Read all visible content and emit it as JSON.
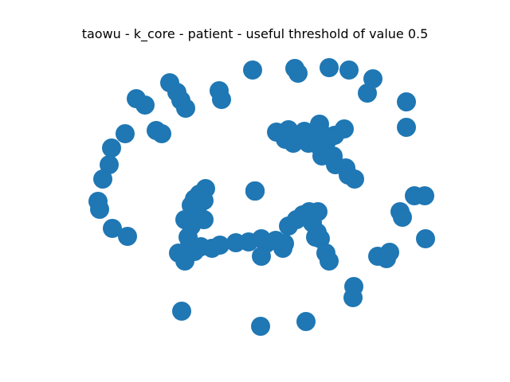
{
  "title": "taowu - k_core - patient - useful threshold of value 0.5",
  "node_color": "#1f77b4",
  "edge_color": "#000000",
  "graph": {
    "type": "network",
    "nodes": [
      {
        "id": 0
      },
      {
        "id": 1
      },
      {
        "id": 2
      },
      {
        "id": 3
      },
      {
        "id": 4
      },
      {
        "id": 5
      },
      {
        "id": 6
      },
      {
        "id": 7
      },
      {
        "id": 8
      },
      {
        "id": 9
      },
      {
        "id": 10
      },
      {
        "id": 11
      },
      {
        "id": 12
      },
      {
        "id": 13
      },
      {
        "id": 14
      },
      {
        "id": 15
      },
      {
        "id": 16
      },
      {
        "id": 17
      },
      {
        "id": 18
      },
      {
        "id": 19
      },
      {
        "id": 20
      },
      {
        "id": 21
      },
      {
        "id": 22
      },
      {
        "id": 23
      },
      {
        "id": 24
      },
      {
        "id": 25
      },
      {
        "id": 26
      },
      {
        "id": 27
      },
      {
        "id": 28
      },
      {
        "id": 29
      },
      {
        "id": 30
      },
      {
        "id": 31
      },
      {
        "id": 32
      },
      {
        "id": 33
      },
      {
        "id": 34
      },
      {
        "id": 35
      },
      {
        "id": 36
      },
      {
        "id": 37
      },
      {
        "id": 38
      },
      {
        "id": 39
      },
      {
        "id": 40
      },
      {
        "id": 41
      },
      {
        "id": 42
      },
      {
        "id": 43
      },
      {
        "id": 44
      },
      {
        "id": 45
      },
      {
        "id": 46
      },
      {
        "id": 47
      },
      {
        "id": 48
      },
      {
        "id": 49
      },
      {
        "id": 50
      },
      {
        "id": 51
      },
      {
        "id": 52
      },
      {
        "id": 53
      },
      {
        "id": 54
      },
      {
        "id": 55
      },
      {
        "id": 56
      },
      {
        "id": 57
      },
      {
        "id": 58
      },
      {
        "id": 59
      },
      {
        "id": 60
      },
      {
        "id": 61
      },
      {
        "id": 62
      },
      {
        "id": 63
      },
      {
        "id": 64
      },
      {
        "id": 65
      },
      {
        "id": 66
      },
      {
        "id": 67
      },
      {
        "id": 68
      },
      {
        "id": 69
      },
      {
        "id": 70
      },
      {
        "id": 71
      },
      {
        "id": 72
      },
      {
        "id": 73
      },
      {
        "id": 74
      },
      {
        "id": 75
      },
      {
        "id": 76
      },
      {
        "id": 77
      },
      {
        "id": 78
      },
      {
        "id": 79
      },
      {
        "id": 80
      },
      {
        "id": 81
      },
      {
        "id": 82
      },
      {
        "id": 83
      },
      {
        "id": 84
      },
      {
        "id": 85
      },
      {
        "id": 86
      },
      {
        "id": 87
      },
      {
        "id": 88
      },
      {
        "id": 89
      },
      {
        "id": 90
      },
      {
        "id": 91
      },
      {
        "id": 92
      },
      {
        "id": 93
      },
      {
        "id": 94
      },
      {
        "id": 95
      },
      {
        "id": 96
      },
      {
        "id": 97
      },
      {
        "id": 98
      },
      {
        "id": 99
      },
      {
        "id": 100
      },
      {
        "id": 101
      },
      {
        "id": 102
      },
      {
        "id": 103
      },
      {
        "id": 104
      },
      {
        "id": 105
      },
      {
        "id": 106
      }
    ],
    "edges": [
      {
        "source": 88,
        "target": 91
      }
    ]
  }
}
